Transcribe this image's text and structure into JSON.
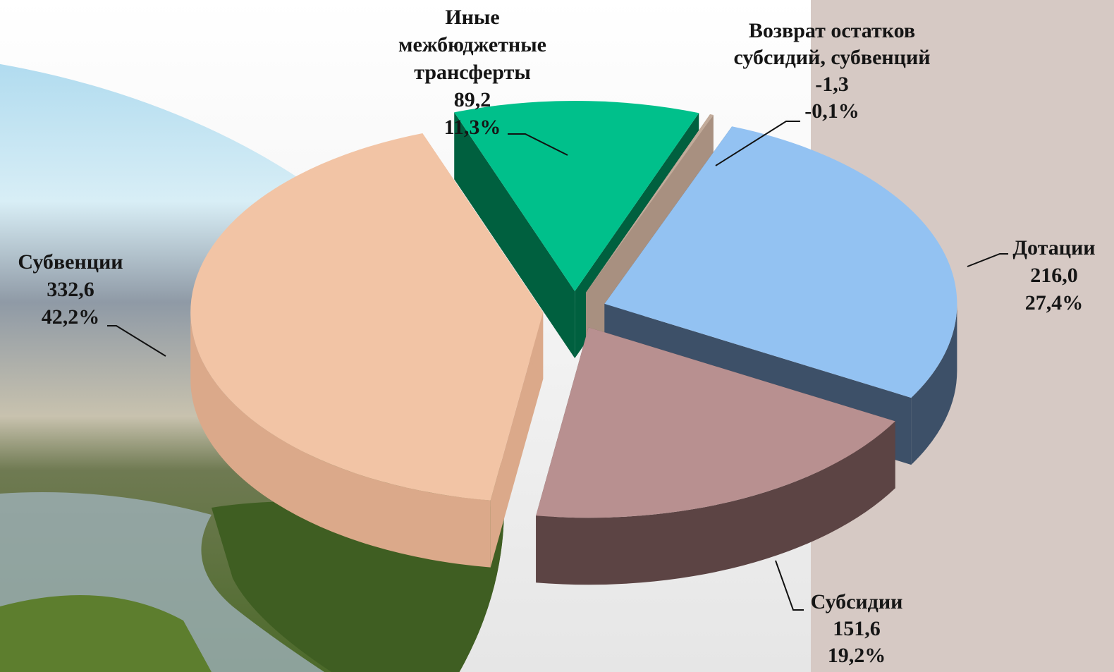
{
  "chart_data": {
    "type": "pie",
    "categories": [
      "Иные межбюджетные трансферты",
      "Возврат остатков субсидий, субвенций",
      "Дотации",
      "Субсидии",
      "Субвенции"
    ],
    "values": [
      89.2,
      -1.3,
      216.0,
      151.6,
      332.6
    ],
    "value_labels": [
      "89,2",
      "-1,3",
      "216,0",
      "151,6",
      "332,6"
    ],
    "percents": [
      11.3,
      -0.1,
      27.4,
      19.2,
      42.2
    ],
    "percent_labels": [
      "11,3%",
      "-0,1%",
      "27,4%",
      "19,2%",
      "42,2%"
    ],
    "colors": [
      "#00c08b",
      "#c2ab9a",
      "#93c2f2",
      "#b89090",
      "#f2c4a5"
    ],
    "side_colors": [
      "#00603f",
      "#a89080",
      "#3d5068",
      "#5c4444",
      "#dba98a"
    ]
  }
}
